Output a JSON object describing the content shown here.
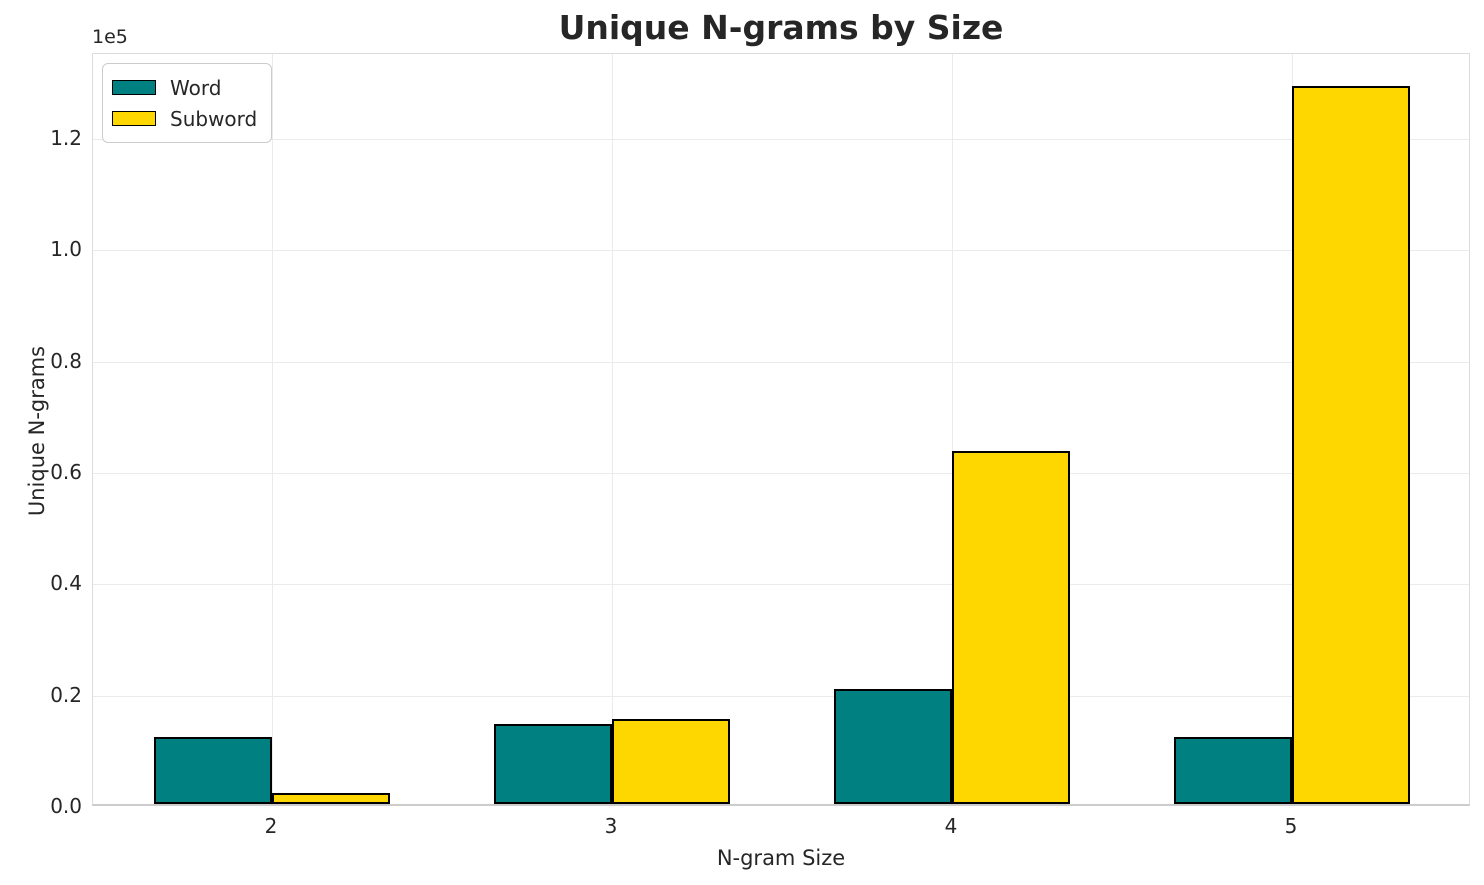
{
  "chart_data": {
    "type": "bar",
    "title": "Unique N-grams by Size",
    "xlabel": "N-gram Size",
    "ylabel": "Unique N-grams",
    "offset_text": "1e5",
    "categories": [
      "2",
      "3",
      "4",
      "5"
    ],
    "series": [
      {
        "name": "Word",
        "color": "#008080",
        "values": [
          12000,
          14400,
          20700,
          12000
        ]
      },
      {
        "name": "Subword",
        "color": "#FFD700",
        "values": [
          2000,
          15200,
          63500,
          129000
        ]
      }
    ],
    "y_ticks": {
      "values": [
        0,
        20000,
        40000,
        60000,
        80000,
        100000,
        120000
      ],
      "labels": [
        "0.0",
        "0.2",
        "0.4",
        "0.6",
        "0.8",
        "1.0",
        "1.2"
      ]
    },
    "ylim": [
      0,
      135270
    ],
    "grid": true,
    "legend_position": "upper left",
    "bar_edge_color": "#000000"
  },
  "colors": {
    "background": "#ffffff",
    "grid": "#ebebeb",
    "text": "#262626",
    "word_bar": "#008080",
    "subword_bar": "#FFD700"
  }
}
